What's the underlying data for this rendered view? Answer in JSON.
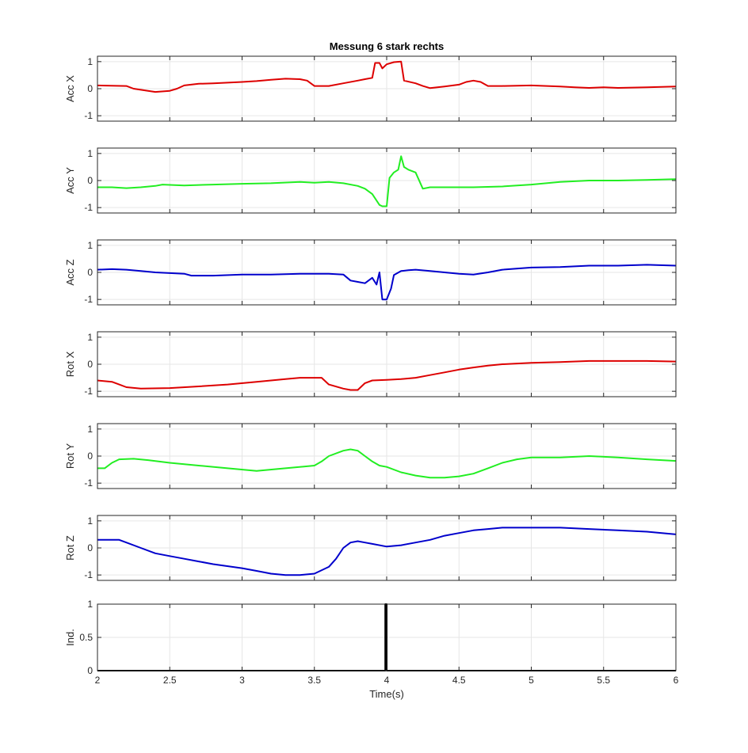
{
  "figure": {
    "title": "Messung 6 stark rechts",
    "xlabel": "Time(s)",
    "xlim": [
      2,
      6
    ],
    "xticks": [
      2,
      2.5,
      3,
      3.5,
      4,
      4.5,
      5,
      5.5,
      6
    ],
    "xtick_labels": [
      "2",
      "2.5",
      "3",
      "3.5",
      "4",
      "4.5",
      "5",
      "5.5",
      "6"
    ],
    "grid": true
  },
  "chart_data": [
    {
      "type": "line",
      "ylabel": "Acc X",
      "ylim": [
        -1.2,
        1.2
      ],
      "yticks": [
        -1,
        0,
        1
      ],
      "ytick_labels": [
        "-1",
        "0",
        "1"
      ],
      "series": [
        {
          "color": "#dd0000",
          "x": [
            2.0,
            2.2,
            2.25,
            2.4,
            2.5,
            2.55,
            2.6,
            2.7,
            2.8,
            3.0,
            3.1,
            3.2,
            3.3,
            3.4,
            3.45,
            3.5,
            3.6,
            3.7,
            3.8,
            3.85,
            3.9,
            3.92,
            3.95,
            3.97,
            4.0,
            4.05,
            4.1,
            4.12,
            4.2,
            4.25,
            4.3,
            4.4,
            4.5,
            4.55,
            4.6,
            4.65,
            4.7,
            4.8,
            5.0,
            5.2,
            5.3,
            5.4,
            5.5,
            5.6,
            5.8,
            6.0
          ],
          "y": [
            0.12,
            0.1,
            0.0,
            -0.12,
            -0.08,
            0.0,
            0.12,
            0.18,
            0.2,
            0.25,
            0.28,
            0.33,
            0.37,
            0.35,
            0.3,
            0.1,
            0.1,
            0.2,
            0.3,
            0.35,
            0.4,
            0.95,
            0.95,
            0.75,
            0.9,
            0.98,
            1.0,
            0.3,
            0.2,
            0.1,
            0.02,
            0.08,
            0.15,
            0.25,
            0.3,
            0.25,
            0.1,
            0.1,
            0.12,
            0.08,
            0.05,
            0.03,
            0.05,
            0.03,
            0.05,
            0.08
          ]
        }
      ]
    },
    {
      "type": "line",
      "ylabel": "Acc Y",
      "ylim": [
        -1.2,
        1.2
      ],
      "yticks": [
        -1,
        0,
        1
      ],
      "ytick_labels": [
        "-1",
        "0",
        "1"
      ],
      "series": [
        {
          "color": "#22ee22",
          "x": [
            2.0,
            2.1,
            2.2,
            2.3,
            2.4,
            2.45,
            2.6,
            2.8,
            3.0,
            3.2,
            3.4,
            3.5,
            3.6,
            3.7,
            3.8,
            3.85,
            3.9,
            3.95,
            3.97,
            4.0,
            4.02,
            4.05,
            4.08,
            4.1,
            4.12,
            4.15,
            4.2,
            4.25,
            4.3,
            4.4,
            4.6,
            4.8,
            5.0,
            5.2,
            5.4,
            5.6,
            5.8,
            6.0
          ],
          "y": [
            -0.25,
            -0.25,
            -0.28,
            -0.25,
            -0.2,
            -0.15,
            -0.18,
            -0.15,
            -0.12,
            -0.1,
            -0.05,
            -0.08,
            -0.05,
            -0.1,
            -0.2,
            -0.3,
            -0.5,
            -0.9,
            -0.95,
            -0.95,
            0.1,
            0.3,
            0.4,
            0.9,
            0.5,
            0.4,
            0.3,
            -0.3,
            -0.25,
            -0.25,
            -0.25,
            -0.22,
            -0.15,
            -0.05,
            0.0,
            0.0,
            0.02,
            0.05
          ]
        }
      ]
    },
    {
      "type": "line",
      "ylabel": "Acc Z",
      "ylim": [
        -1.2,
        1.2
      ],
      "yticks": [
        -1,
        0,
        1
      ],
      "ytick_labels": [
        "-1",
        "0",
        "1"
      ],
      "series": [
        {
          "color": "#0000cc",
          "x": [
            2.0,
            2.1,
            2.2,
            2.3,
            2.4,
            2.6,
            2.65,
            2.8,
            3.0,
            3.2,
            3.4,
            3.6,
            3.7,
            3.75,
            3.8,
            3.85,
            3.9,
            3.93,
            3.95,
            3.97,
            4.0,
            4.03,
            4.05,
            4.1,
            4.15,
            4.2,
            4.3,
            4.4,
            4.5,
            4.6,
            4.7,
            4.8,
            5.0,
            5.2,
            5.4,
            5.6,
            5.8,
            6.0
          ],
          "y": [
            0.1,
            0.12,
            0.1,
            0.05,
            0.0,
            -0.05,
            -0.12,
            -0.12,
            -0.08,
            -0.08,
            -0.05,
            -0.05,
            -0.08,
            -0.3,
            -0.35,
            -0.4,
            -0.2,
            -0.45,
            0.0,
            -1.0,
            -1.0,
            -0.6,
            -0.1,
            0.05,
            0.08,
            0.1,
            0.05,
            0.0,
            -0.05,
            -0.08,
            0.0,
            0.1,
            0.18,
            0.2,
            0.25,
            0.25,
            0.28,
            0.25
          ]
        }
      ]
    },
    {
      "type": "line",
      "ylabel": "Rot X",
      "ylim": [
        -1.2,
        1.2
      ],
      "yticks": [
        -1,
        0,
        1
      ],
      "ytick_labels": [
        "-1",
        "0",
        "1"
      ],
      "series": [
        {
          "color": "#dd0000",
          "x": [
            2.0,
            2.1,
            2.15,
            2.2,
            2.3,
            2.5,
            2.7,
            2.9,
            3.1,
            3.3,
            3.4,
            3.55,
            3.6,
            3.7,
            3.75,
            3.8,
            3.85,
            3.9,
            4.0,
            4.1,
            4.2,
            4.3,
            4.4,
            4.5,
            4.6,
            4.7,
            4.8,
            5.0,
            5.2,
            5.4,
            5.6,
            5.8,
            6.0
          ],
          "y": [
            -0.6,
            -0.65,
            -0.75,
            -0.85,
            -0.9,
            -0.88,
            -0.82,
            -0.75,
            -0.65,
            -0.55,
            -0.5,
            -0.5,
            -0.75,
            -0.9,
            -0.95,
            -0.95,
            -0.7,
            -0.6,
            -0.58,
            -0.55,
            -0.5,
            -0.4,
            -0.3,
            -0.2,
            -0.12,
            -0.05,
            0.0,
            0.05,
            0.08,
            0.12,
            0.12,
            0.12,
            0.1
          ]
        }
      ]
    },
    {
      "type": "line",
      "ylabel": "Rot Y",
      "ylim": [
        -1.2,
        1.2
      ],
      "yticks": [
        -1,
        0,
        1
      ],
      "ytick_labels": [
        "-1",
        "0",
        "1"
      ],
      "series": [
        {
          "color": "#22ee22",
          "x": [
            2.0,
            2.05,
            2.1,
            2.15,
            2.25,
            2.35,
            2.5,
            2.7,
            2.9,
            3.1,
            3.3,
            3.5,
            3.55,
            3.6,
            3.7,
            3.75,
            3.8,
            3.85,
            3.9,
            3.95,
            4.0,
            4.1,
            4.2,
            4.3,
            4.4,
            4.5,
            4.6,
            4.7,
            4.8,
            4.9,
            5.0,
            5.2,
            5.4,
            5.6,
            5.8,
            6.0
          ],
          "y": [
            -0.45,
            -0.45,
            -0.25,
            -0.12,
            -0.1,
            -0.15,
            -0.25,
            -0.35,
            -0.45,
            -0.55,
            -0.45,
            -0.35,
            -0.2,
            0.0,
            0.2,
            0.25,
            0.2,
            0.0,
            -0.2,
            -0.35,
            -0.4,
            -0.6,
            -0.72,
            -0.8,
            -0.8,
            -0.75,
            -0.65,
            -0.45,
            -0.25,
            -0.12,
            -0.05,
            -0.05,
            0.0,
            -0.05,
            -0.12,
            -0.18
          ]
        }
      ]
    },
    {
      "type": "line",
      "ylabel": "Rot Z",
      "ylim": [
        -1.2,
        1.2
      ],
      "yticks": [
        -1,
        0,
        1
      ],
      "ytick_labels": [
        "-1",
        "0",
        "1"
      ],
      "series": [
        {
          "color": "#0000cc",
          "x": [
            2.0,
            2.15,
            2.2,
            2.3,
            2.4,
            2.5,
            2.6,
            2.7,
            2.8,
            3.0,
            3.1,
            3.2,
            3.3,
            3.4,
            3.5,
            3.6,
            3.65,
            3.7,
            3.75,
            3.8,
            3.85,
            3.9,
            4.0,
            4.1,
            4.2,
            4.3,
            4.4,
            4.5,
            4.6,
            4.7,
            4.8,
            4.9,
            5.0,
            5.2,
            5.4,
            5.6,
            5.8,
            6.0
          ],
          "y": [
            0.3,
            0.3,
            0.2,
            0.0,
            -0.2,
            -0.3,
            -0.4,
            -0.5,
            -0.6,
            -0.75,
            -0.85,
            -0.95,
            -1.0,
            -1.0,
            -0.95,
            -0.7,
            -0.4,
            0.0,
            0.2,
            0.25,
            0.2,
            0.15,
            0.05,
            0.1,
            0.2,
            0.3,
            0.45,
            0.55,
            0.65,
            0.7,
            0.75,
            0.75,
            0.75,
            0.75,
            0.7,
            0.65,
            0.6,
            0.5
          ]
        }
      ]
    },
    {
      "type": "line",
      "ylabel": "Ind.",
      "ylim": [
        0,
        1
      ],
      "yticks": [
        0,
        0.5,
        1
      ],
      "ytick_labels": [
        "0",
        "0.5",
        "1"
      ],
      "series": [
        {
          "color": "#000000",
          "x": [
            2.0,
            3.99,
            3.99,
            4.0,
            4.0,
            6.0
          ],
          "y": [
            0,
            0,
            1,
            1,
            0,
            0
          ]
        }
      ]
    }
  ]
}
